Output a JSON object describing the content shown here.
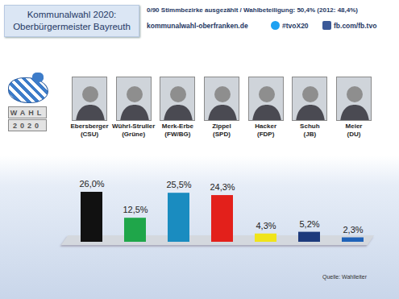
{
  "chart_data": {
    "type": "bar",
    "title": "Kommunalwahl 2020:\nOberbürgermeister Bayreuth",
    "subtitle": "0/90 Stimmbezirke ausgezählt / Wahlbeteiligung: 50,4% (2012: 48,4%)",
    "annotations": [
      "kommunalwahl-oberfranken.de",
      "#tvoX20",
      "fb.com/fb.tvo"
    ],
    "logo_text": [
      "WAHL",
      "2020"
    ],
    "source": "Quelle: Wahlleiter",
    "categories": [
      "Ebersberger\n(CSU)",
      "Wührl-Struller\n(Grüne)",
      "Merk-Erbe\n(FW/BG)",
      "Zippel\n(SPD)",
      "Hacker\n(FDP)",
      "Schuh\n(JB)",
      "Meier\n(DU)"
    ],
    "values": [
      26.0,
      12.5,
      25.5,
      24.3,
      4.3,
      5.2,
      2.3
    ],
    "value_labels": [
      "26,0%",
      "12,5%",
      "25,5%",
      "24,3%",
      "4,3%",
      "5,2%",
      "2,3%"
    ],
    "colors": [
      "#111111",
      "#1fa64a",
      "#1a8cc0",
      "#e3201b",
      "#f0e41a",
      "#1d3a7c",
      "#1f62b8"
    ],
    "data_labels": true,
    "tick_labels": false,
    "grid": false
  }
}
